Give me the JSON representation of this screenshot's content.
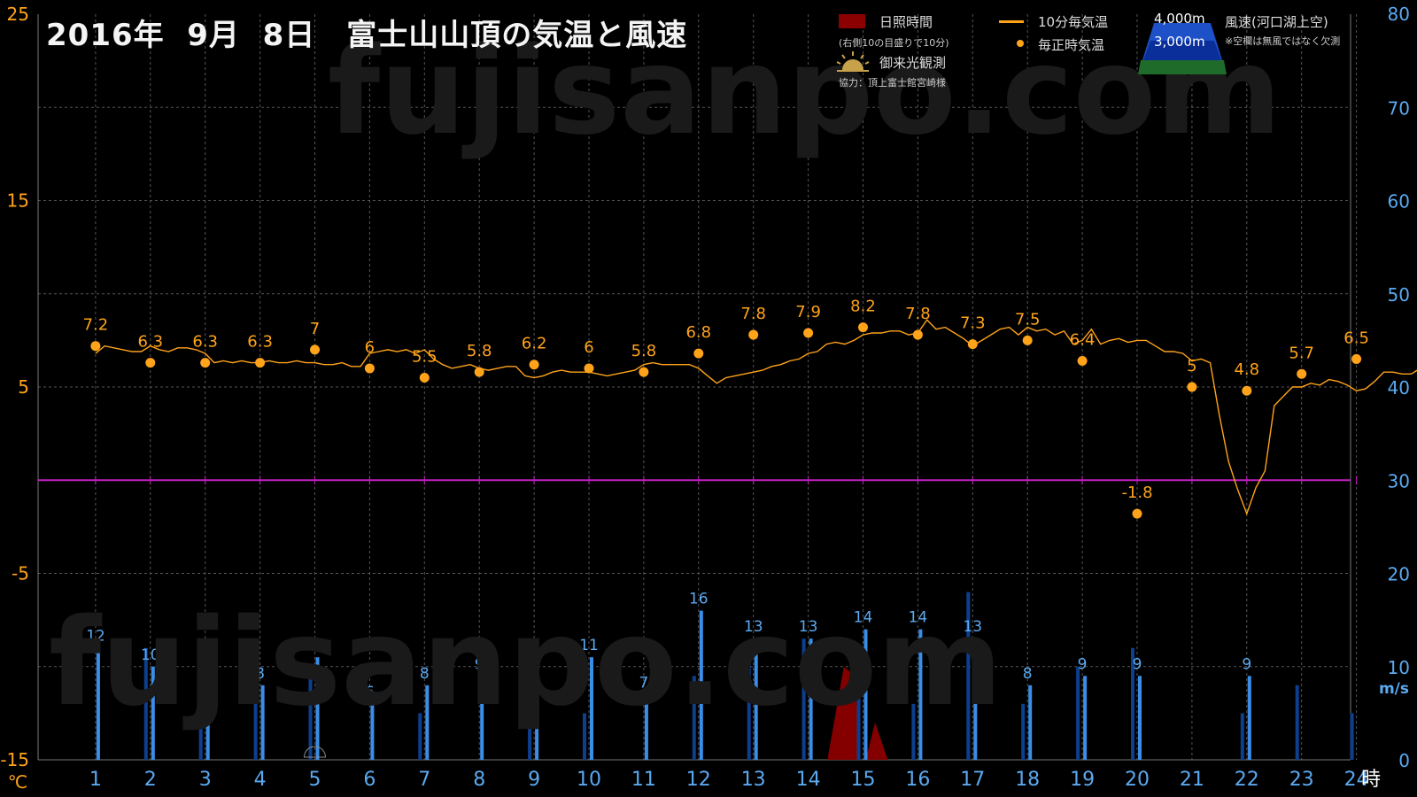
{
  "page": {
    "title": "2016年  9月  8日　富士山山頂の気温と風速",
    "watermark": "fujisanpo.com"
  },
  "legend": {
    "sunshine_label": "日照時間",
    "sunshine_note": "(右側10の目盛りで10分)",
    "temp10_label": "10分毎気温",
    "hourly_label": "毎正時気温",
    "goraiko_label": "御来光観測",
    "cooperation": "協力：頂上富士館宮崎様",
    "alt4000": "4,000m",
    "alt3000": "3,000m",
    "wind_label": "風速(河口湖上空)",
    "wind_note": "※空欄は無風ではなく欠測"
  },
  "colors": {
    "temperature": "#ffa31a",
    "wind_4000m": "#0d3f8f",
    "wind_3000m": "#3a8ee8",
    "sunshine": "#8b0000",
    "zero_line": "#c020c0",
    "grid": "#555555",
    "left_axis": "#ffa31a",
    "right_axis": "#5aa9f0"
  },
  "chart_data": {
    "type": "line",
    "x_unit": "時",
    "left_axis": {
      "unit": "℃",
      "ticks": [
        25,
        15,
        5,
        -5,
        -15
      ],
      "range": [
        -15,
        25
      ]
    },
    "right_axis": {
      "unit": "m/s",
      "ticks": [
        80,
        70,
        60,
        50,
        40,
        30,
        20,
        10,
        0
      ],
      "range": [
        0,
        80
      ]
    },
    "x_ticks": [
      1,
      2,
      3,
      4,
      5,
      6,
      7,
      8,
      9,
      10,
      11,
      12,
      13,
      14,
      15,
      16,
      17,
      18,
      19,
      20,
      21,
      22,
      23,
      24
    ],
    "hourly_temperature": {
      "name": "毎正時気温",
      "x": [
        1,
        2,
        3,
        4,
        5,
        6,
        7,
        8,
        9,
        10,
        11,
        12,
        13,
        14,
        15,
        16,
        17,
        18,
        19,
        20,
        21,
        22,
        23,
        24
      ],
      "values": [
        7.2,
        6.3,
        6.3,
        6.3,
        7,
        6,
        5.5,
        5.8,
        6.2,
        6,
        5.8,
        6.8,
        7.8,
        7.9,
        8.2,
        7.8,
        7.3,
        7.5,
        6.4,
        -1.8,
        5,
        4.8,
        5.7,
        6.5
      ]
    },
    "ten_minute_temperature": {
      "name": "10分毎気温",
      "values": [
        6.8,
        7.2,
        7.1,
        7.0,
        6.9,
        6.9,
        7.2,
        7.0,
        6.9,
        7.1,
        7.1,
        7.0,
        6.8,
        6.3,
        6.4,
        6.3,
        6.4,
        6.3,
        6.3,
        6.4,
        6.3,
        6.3,
        6.4,
        6.3,
        6.3,
        6.2,
        6.2,
        6.3,
        6.1,
        6.1,
        6.8,
        6.9,
        7.0,
        6.9,
        7.0,
        6.8,
        7.0,
        6.5,
        6.2,
        6.0,
        6.1,
        6.2,
        6.0,
        5.9,
        6.0,
        6.1,
        6.1,
        5.6,
        5.5,
        5.6,
        5.8,
        5.9,
        5.8,
        5.8,
        5.8,
        5.7,
        5.6,
        5.7,
        5.8,
        5.9,
        6.2,
        6.3,
        6.2,
        6.2,
        6.2,
        6.2,
        6.0,
        5.6,
        5.2,
        5.5,
        5.6,
        5.7,
        5.8,
        5.9,
        6.1,
        6.2,
        6.4,
        6.5,
        6.8,
        6.9,
        7.3,
        7.4,
        7.3,
        7.5,
        7.8,
        7.9,
        7.9,
        8.0,
        8.0,
        7.8,
        7.9,
        8.6,
        8.1,
        8.2,
        7.9,
        7.6,
        7.2,
        7.5,
        7.8,
        8.1,
        8.2,
        7.8,
        8.2,
        8.0,
        8.1,
        7.8,
        8.0,
        7.3,
        7.5,
        8.1,
        7.3,
        7.5,
        7.6,
        7.4,
        7.5,
        7.5,
        7.2,
        6.9,
        6.9,
        6.8,
        6.4,
        6.5,
        6.3,
        3.5,
        1.0,
        -0.5,
        -1.8,
        -0.4,
        0.5,
        4.0,
        4.5,
        5.0,
        5.0,
        5.2,
        5.1,
        5.4,
        5.3,
        5.1,
        4.8,
        4.9,
        5.3,
        5.8,
        5.8,
        5.7,
        5.7,
        6.0,
        6.6,
        6.9,
        6.5,
        6.5
      ]
    },
    "wind_speed_4000m": {
      "name": "4,000m",
      "x": [
        1,
        2,
        3,
        4,
        5,
        6,
        7,
        8,
        9,
        10,
        11,
        12,
        13,
        14,
        15,
        16,
        17,
        18,
        19,
        20,
        21,
        22,
        23,
        24
      ],
      "values": [
        null,
        12,
        9,
        6,
        9,
        null,
        5,
        null,
        6,
        5,
        null,
        9,
        11,
        13,
        11,
        6,
        18,
        6,
        10,
        12,
        null,
        5,
        8,
        5
      ]
    },
    "wind_speed_3000m": {
      "name": "3,000m",
      "x": [
        1,
        2,
        3,
        4,
        5,
        6,
        7,
        8,
        9,
        10,
        11,
        12,
        13,
        14,
        15,
        16,
        17,
        18,
        19,
        20,
        21,
        22,
        23,
        24
      ],
      "values": [
        12,
        10,
        7,
        8,
        11,
        6,
        8,
        9,
        9,
        11,
        7,
        16,
        13,
        13,
        14,
        14,
        13,
        8,
        9,
        9,
        null,
        9,
        null,
        null
      ]
    },
    "sunshine_minutes": [
      {
        "x": 14.35,
        "value": 0
      },
      {
        "x": 14.65,
        "value": 10
      },
      {
        "x": 14.85,
        "value": 9
      },
      {
        "x": 14.95,
        "value": 0
      },
      {
        "x": 15.05,
        "value": 0
      },
      {
        "x": 15.22,
        "value": 4
      },
      {
        "x": 15.45,
        "value": 0
      }
    ],
    "goraiko_hour": 5
  }
}
